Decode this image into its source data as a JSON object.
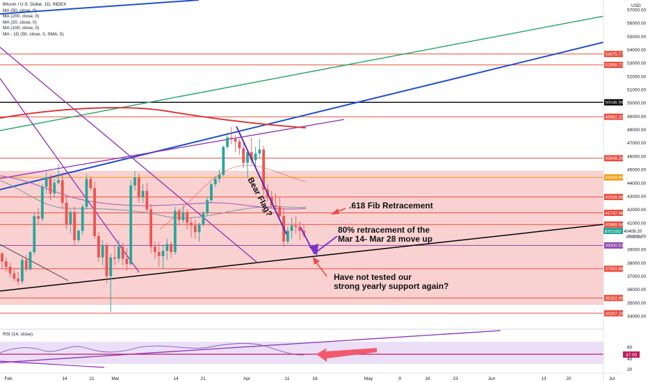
{
  "header": {
    "title": "Bitcoin / U.S. Dollar, 1D, INDEX",
    "indicators": [
      "MA (50, close, 0)",
      "MA (200, close, 0)",
      "MA (20, close, 0)",
      "MA (100, close, 0)",
      "MA - 1D (50, close, 0, SMA, 5)"
    ]
  },
  "rsi_label": "RSI (14, close)",
  "chart_data": {
    "type": "candlestick",
    "title": "Bitcoin / U.S. Dollar, 1D, INDEX",
    "currency": "USD",
    "ylim": [
      33400,
      57600
    ],
    "y_ticks": [
      57000,
      56000,
      55000,
      54000,
      53000,
      52000,
      51000,
      50000,
      49000,
      48000,
      47000,
      46000,
      45000,
      44000,
      43000,
      42000,
      41000,
      40000,
      39000,
      38000,
      37000,
      36000,
      35000,
      34000
    ],
    "x_tick_labels": [
      "Feb",
      "14",
      "21",
      "Mar",
      "14",
      "21",
      "Apr",
      "11",
      "18",
      "May",
      "9",
      "16",
      "23",
      "Jun",
      "13",
      "20",
      "Jul"
    ],
    "last_price": {
      "label": "BTCUSD",
      "value": "40409.20",
      "countdown": "07:56:16"
    },
    "price_levels": [
      {
        "value": 53675.77,
        "label": "53675.77",
        "color": "#e74c3c"
      },
      {
        "value": 52858.72,
        "label": "52858.72",
        "color": "#e74c3c"
      },
      {
        "value": 50046.99,
        "label": "50046.99",
        "color": "#000000"
      },
      {
        "value": 48962.32,
        "label": "48962.32",
        "color": "#e74c3c"
      },
      {
        "value": 45849.29,
        "label": "45849.29",
        "color": "#e74c3c"
      },
      {
        "value": 44408.66,
        "label": "44408.66",
        "color": "#f39c12"
      },
      {
        "value": 42938.58,
        "label": "42938.58",
        "color": "#e74c3c"
      },
      {
        "value": 41747.46,
        "label": "41747.46",
        "color": "#e74c3c"
      },
      {
        "value": 40869.34,
        "label": "40869.34",
        "color": "#e74c3c"
      },
      {
        "value": 39300.53,
        "label": "39300.53",
        "color": "#8e44ad"
      },
      {
        "value": 37550.88,
        "label": "37550.88",
        "color": "#e74c3c"
      },
      {
        "value": 35352.05,
        "label": "35352.05",
        "color": "#e74c3c"
      },
      {
        "value": 34207.18,
        "label": "34207.18",
        "color": "#e74c3c"
      }
    ],
    "annotations": [
      ".618 Fib Retracement",
      "80% retracement of the",
      "Mar 14- Mar 28 move up",
      "Have not tested our",
      "strong yearly support again?",
      "Bear Flag?"
    ],
    "candles": [
      [
        38700,
        38800,
        37600,
        38100
      ],
      [
        38100,
        38400,
        37300,
        37700
      ],
      [
        37700,
        38000,
        36900,
        37200
      ],
      [
        37200,
        37600,
        36600,
        36800
      ],
      [
        36800,
        37300,
        36300,
        36600
      ],
      [
        36600,
        38400,
        36400,
        38200
      ],
      [
        38200,
        38600,
        37300,
        37500
      ],
      [
        37500,
        38900,
        37400,
        38800
      ],
      [
        38800,
        41800,
        38600,
        41500
      ],
      [
        41500,
        42100,
        40900,
        41300
      ],
      [
        41300,
        43900,
        41100,
        43700
      ],
      [
        43700,
        44800,
        43200,
        44400
      ],
      [
        44400,
        44600,
        42700,
        43200
      ],
      [
        43200,
        44300,
        42900,
        44000
      ],
      [
        44000,
        45400,
        43900,
        44200
      ],
      [
        44200,
        44600,
        42000,
        42500
      ],
      [
        42500,
        43000,
        40500,
        40900
      ],
      [
        40900,
        42000,
        40200,
        41800
      ],
      [
        41800,
        42200,
        39300,
        39700
      ],
      [
        39700,
        40500,
        39500,
        40400
      ],
      [
        40400,
        42400,
        40100,
        42200
      ],
      [
        42200,
        44700,
        42000,
        44300
      ],
      [
        44300,
        44500,
        43400,
        43600
      ],
      [
        43600,
        44100,
        39800,
        40000
      ],
      [
        40000,
        40300,
        38100,
        38400
      ],
      [
        38400,
        39700,
        37800,
        39300
      ],
      [
        39300,
        39500,
        36500,
        37000
      ],
      [
        37000,
        38700,
        34300,
        38400
      ],
      [
        38400,
        39300,
        37800,
        38300
      ],
      [
        38300,
        39700,
        38000,
        39200
      ],
      [
        39200,
        39500,
        37800,
        38300
      ],
      [
        38300,
        39100,
        37400,
        37900
      ],
      [
        37900,
        44200,
        37800,
        43800
      ],
      [
        43800,
        44900,
        43400,
        44400
      ],
      [
        44400,
        44700,
        42500,
        42900
      ],
      [
        42900,
        43900,
        42500,
        43400
      ],
      [
        43400,
        44000,
        41800,
        42000
      ],
      [
        42000,
        42400,
        38700,
        39200
      ],
      [
        39200,
        39600,
        38300,
        38800
      ],
      [
        38800,
        39500,
        37700,
        38500
      ],
      [
        38500,
        39300,
        37500,
        38900
      ],
      [
        38900,
        39800,
        38200,
        39400
      ],
      [
        39400,
        39600,
        38400,
        38800
      ],
      [
        38800,
        42200,
        38600,
        41900
      ],
      [
        41900,
        42100,
        40800,
        41200
      ],
      [
        41200,
        42300,
        41000,
        41800
      ],
      [
        41800,
        42000,
        40500,
        41000
      ],
      [
        41000,
        41400,
        39900,
        40800
      ],
      [
        40800,
        41200,
        39800,
        40300
      ],
      [
        40300,
        41000,
        39600,
        40900
      ],
      [
        40900,
        41900,
        40700,
        41700
      ],
      [
        41700,
        42900,
        41500,
        42700
      ],
      [
        42700,
        44000,
        42500,
        43900
      ],
      [
        43900,
        44500,
        43700,
        44300
      ],
      [
        44300,
        45000,
        44000,
        44600
      ],
      [
        44600,
        46800,
        44500,
        46700
      ],
      [
        46700,
        47600,
        46500,
        47400
      ],
      [
        47400,
        48200,
        46900,
        47300
      ],
      [
        47300,
        47600,
        46300,
        47100
      ],
      [
        47100,
        47300,
        46100,
        46600
      ],
      [
        46600,
        47100,
        45100,
        45500
      ],
      [
        45500,
        46400,
        44400,
        46300
      ],
      [
        46300,
        47400,
        45400,
        45700
      ],
      [
        45700,
        46700,
        45200,
        46200
      ],
      [
        46200,
        47300,
        45900,
        46500
      ],
      [
        46500,
        46800,
        43100,
        43500
      ],
      [
        43500,
        43900,
        42600,
        42900
      ],
      [
        42900,
        43400,
        42100,
        42300
      ],
      [
        42300,
        43200,
        42000,
        42200
      ],
      [
        42200,
        42900,
        41400,
        41500
      ],
      [
        41500,
        42100,
        39200,
        39600
      ],
      [
        39600,
        40700,
        39400,
        40400
      ],
      [
        40400,
        41400,
        39800,
        40800
      ],
      [
        40800,
        41500,
        40200,
        40700
      ],
      [
        40700,
        41100,
        39700,
        40400
      ],
      [
        40400,
        40900,
        39900,
        40100
      ]
    ],
    "rsi_ticks": [
      60,
      47.05,
      40,
      20
    ],
    "rsi_last": "47.05"
  }
}
